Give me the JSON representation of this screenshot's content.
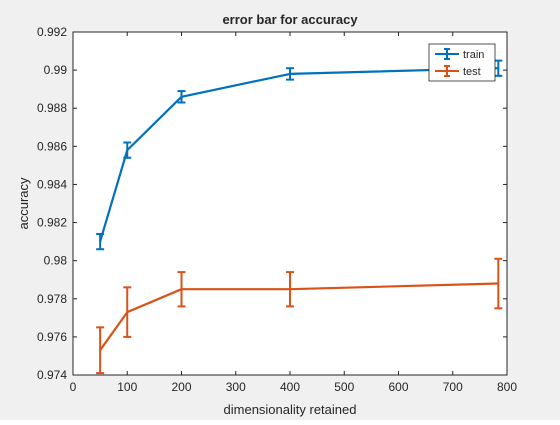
{
  "chart_data": {
    "type": "line",
    "title": "error bar for accuracy",
    "xlabel": "dimensionality retained",
    "ylabel": "accuracy",
    "xlim": [
      0,
      800
    ],
    "ylim": [
      0.974,
      0.992
    ],
    "xticks": [
      0,
      100,
      200,
      300,
      400,
      500,
      600,
      700,
      800
    ],
    "xtick_labels": [
      "0",
      "100",
      "200",
      "300",
      "400",
      "500",
      "600",
      "700",
      "800"
    ],
    "yticks": [
      0.974,
      0.976,
      0.978,
      0.98,
      0.982,
      0.984,
      0.986,
      0.988,
      0.99,
      0.992
    ],
    "ytick_labels": [
      "0.974",
      "0.976",
      "0.978",
      "0.98",
      "0.982",
      "0.984",
      "0.986",
      "0.988",
      "0.99",
      "0.992"
    ],
    "grid": false,
    "legend_position": "top-right",
    "series": [
      {
        "name": "train",
        "color": "#0072bd",
        "x": [
          50,
          100,
          200,
          400,
          784
        ],
        "y": [
          0.981,
          0.9858,
          0.9886,
          0.9898,
          0.9901
        ],
        "err": [
          0.0004,
          0.0004,
          0.0003,
          0.0003,
          0.0004
        ]
      },
      {
        "name": "test",
        "color": "#d95319",
        "x": [
          50,
          100,
          200,
          400,
          784
        ],
        "y": [
          0.9753,
          0.9773,
          0.9785,
          0.9785,
          0.9788
        ],
        "err": [
          0.0012,
          0.0013,
          0.0009,
          0.0009,
          0.0013
        ]
      }
    ]
  }
}
